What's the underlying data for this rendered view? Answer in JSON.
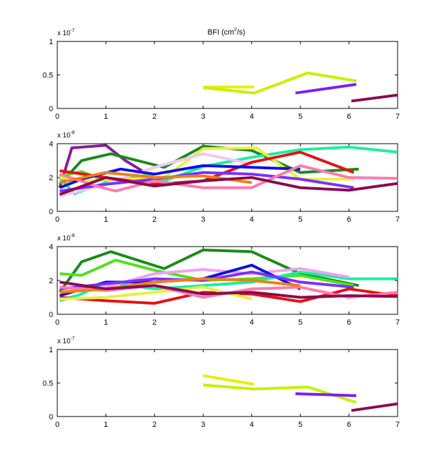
{
  "chart_data": [
    {
      "type": "line",
      "title": "BFI (cm",
      "title_sup": "2",
      "title_tail": "/s)",
      "exponent": {
        "base": "x 10",
        "power": "-7"
      },
      "xlim": [
        0,
        7
      ],
      "ylim": [
        0,
        1
      ],
      "xticks": [
        "0",
        "1",
        "2",
        "3",
        "4",
        "5",
        "6",
        "7"
      ],
      "yticks": [
        "0",
        "0.5",
        "1"
      ],
      "yvalues": [
        0,
        0.5,
        1
      ],
      "series": [
        {
          "color": "#e8f000",
          "x": [
            3.0,
            4.05
          ],
          "y": [
            0.32,
            0.32
          ]
        },
        {
          "color": "#c8f000",
          "x": [
            3.0,
            4.05,
            5.15,
            6.15
          ],
          "y": [
            0.31,
            0.23,
            0.53,
            0.41
          ]
        },
        {
          "color": "#7a1cff",
          "x": [
            4.9,
            6.15
          ],
          "y": [
            0.23,
            0.36
          ]
        },
        {
          "color": "#8b0a50",
          "x": [
            6.05,
            7.0
          ],
          "y": [
            0.11,
            0.2
          ]
        }
      ]
    },
    {
      "type": "line",
      "exponent": {
        "base": "x 10",
        "power": "-8"
      },
      "xlim": [
        0,
        7
      ],
      "ylim": [
        0,
        4
      ],
      "xticks": [
        "0",
        "1",
        "2",
        "3",
        "4",
        "5",
        "6",
        "7"
      ],
      "yticks": [
        "0",
        "2",
        "4"
      ],
      "yvalues": [
        0,
        2,
        4
      ],
      "series": [
        {
          "color": "#8b1a9a",
          "x": [
            0.05,
            0.3,
            1.0,
            1.4,
            2.2
          ],
          "y": [
            1.4,
            3.75,
            3.9,
            3.0,
            1.6
          ]
        },
        {
          "color": "#1a8a1a",
          "x": [
            0.05,
            0.5,
            1.1,
            2.2,
            3.0,
            4.0,
            5.0,
            6.2
          ],
          "y": [
            1.6,
            3.0,
            3.4,
            2.6,
            3.85,
            3.6,
            2.3,
            2.5
          ]
        },
        {
          "color": "#50e020",
          "x": [
            0.05,
            0.5,
            1.0,
            2.0
          ],
          "y": [
            2.1,
            2.35,
            1.8,
            2.2
          ]
        },
        {
          "color": "#18f0a0",
          "x": [
            0.05,
            0.35,
            1.0,
            2.2,
            3.0,
            4.0,
            5.0,
            6.0,
            7.0
          ],
          "y": [
            2.0,
            1.05,
            1.7,
            1.8,
            2.65,
            3.2,
            3.65,
            3.8,
            3.5
          ]
        },
        {
          "color": "#e8f040",
          "x": [
            0.05,
            0.5,
            2.2,
            3.0,
            4.1,
            5.0,
            6.1
          ],
          "y": [
            2.0,
            1.8,
            2.0,
            3.7,
            3.75,
            1.9,
            1.9
          ]
        },
        {
          "color": "#f0c8f0",
          "x": [
            0.05,
            1.0,
            2.0,
            3.0,
            4.0
          ],
          "y": [
            0.9,
            1.6,
            2.6,
            3.4,
            2.8
          ]
        },
        {
          "color": "#e81010",
          "x": [
            0.05,
            1.0,
            2.0,
            3.0,
            4.0,
            5.0,
            6.1
          ],
          "y": [
            2.4,
            2.0,
            1.6,
            1.8,
            2.9,
            3.5,
            2.3
          ]
        },
        {
          "color": "#1010e8",
          "x": [
            0.05,
            0.5,
            1.3,
            2.0,
            3.0,
            4.0,
            5.0
          ],
          "y": [
            1.4,
            1.9,
            2.5,
            2.2,
            2.7,
            2.6,
            2.5
          ]
        },
        {
          "color": "#7a30ff",
          "x": [
            0.05,
            1.0,
            2.0,
            3.0,
            4.0,
            5.0,
            6.1
          ],
          "y": [
            1.2,
            1.6,
            1.9,
            2.3,
            2.2,
            1.9,
            1.4
          ]
        },
        {
          "color": "#ff7ab0",
          "x": [
            0.05,
            0.8,
            1.2,
            2.0,
            3.0,
            4.0,
            5.0,
            6.0,
            7.0
          ],
          "y": [
            2.2,
            1.5,
            1.2,
            1.8,
            1.4,
            1.4,
            2.7,
            2.0,
            1.95
          ]
        },
        {
          "color": "#f08010",
          "x": [
            0.05,
            1.0,
            2.0,
            3.0,
            4.0
          ],
          "y": [
            1.7,
            2.3,
            2.0,
            2.1,
            1.7
          ]
        },
        {
          "color": "#8b0a50",
          "x": [
            0.05,
            1.0,
            2.0,
            3.0,
            4.0,
            5.0,
            6.0,
            7.0
          ],
          "y": [
            1.0,
            2.0,
            1.5,
            1.8,
            2.0,
            1.4,
            1.25,
            1.65
          ]
        }
      ]
    },
    {
      "type": "line",
      "exponent": {
        "base": "x 10",
        "power": "-8"
      },
      "xlim": [
        0,
        7
      ],
      "ylim": [
        0,
        4
      ],
      "xticks": [
        "0",
        "1",
        "2",
        "3",
        "4",
        "5",
        "6",
        "7"
      ],
      "yticks": [
        "0",
        "2",
        "4"
      ],
      "yvalues": [
        0,
        2,
        4
      ],
      "series": [
        {
          "color": "#1a8a1a",
          "x": [
            0.05,
            0.5,
            1.1,
            2.2,
            3.0,
            4.0,
            5.0,
            6.2
          ],
          "y": [
            1.3,
            3.1,
            3.7,
            2.7,
            3.8,
            3.7,
            2.4,
            1.7
          ]
        },
        {
          "color": "#50e020",
          "x": [
            0.05,
            0.5,
            1.2,
            2.0,
            3.0,
            4.0,
            5.0,
            6.1
          ],
          "y": [
            2.4,
            2.3,
            3.2,
            2.6,
            2.0,
            2.1,
            2.3,
            1.7
          ]
        },
        {
          "color": "#18f0a0",
          "x": [
            0.05,
            0.5,
            1.0,
            2.0,
            3.0,
            4.0,
            5.0,
            6.0,
            7.0
          ],
          "y": [
            0.8,
            1.2,
            1.9,
            1.5,
            1.7,
            1.9,
            2.5,
            2.1,
            2.1
          ]
        },
        {
          "color": "#f0a0f0",
          "x": [
            0.05,
            1.0,
            2.0,
            3.0,
            4.0,
            5.0,
            6.0
          ],
          "y": [
            1.3,
            1.6,
            2.4,
            2.65,
            2.4,
            2.7,
            2.2
          ]
        },
        {
          "color": "#1010e8",
          "x": [
            0.05,
            1.0,
            2.0,
            3.0,
            4.0,
            5.0
          ],
          "y": [
            1.1,
            1.9,
            1.9,
            2.1,
            2.9,
            1.5
          ]
        },
        {
          "color": "#7a30ff",
          "x": [
            0.05,
            1.0,
            2.0,
            3.0,
            4.0,
            5.0,
            6.1
          ],
          "y": [
            1.5,
            1.8,
            2.1,
            2.0,
            2.5,
            1.9,
            1.6
          ]
        },
        {
          "color": "#e81010",
          "x": [
            0.05,
            1.0,
            2.0,
            3.0,
            4.0,
            5.0,
            6.0,
            7.0
          ],
          "y": [
            1.0,
            0.8,
            0.65,
            1.3,
            1.2,
            0.75,
            1.5,
            1.1
          ]
        },
        {
          "color": "#e8f040",
          "x": [
            0.05,
            1.0,
            2.0,
            3.0,
            4.0
          ],
          "y": [
            0.9,
            1.0,
            1.3,
            1.6,
            0.9
          ]
        },
        {
          "color": "#ff7ab0",
          "x": [
            0.05,
            1.0,
            2.0,
            3.0,
            4.0,
            5.0,
            6.0,
            7.0
          ],
          "y": [
            1.6,
            1.4,
            1.7,
            1.0,
            1.5,
            1.6,
            1.0,
            1.3
          ]
        },
        {
          "color": "#f08010",
          "x": [
            0.05,
            1.0,
            2.0,
            3.0,
            4.0,
            5.0
          ],
          "y": [
            1.3,
            1.5,
            1.9,
            2.1,
            2.0,
            1.7
          ]
        },
        {
          "color": "#8b0a50",
          "x": [
            0.05,
            1.0,
            2.0,
            3.0,
            4.0,
            5.0,
            6.0,
            7.0
          ],
          "y": [
            1.9,
            1.5,
            1.7,
            1.2,
            1.3,
            1.0,
            1.1,
            1.05
          ]
        }
      ]
    },
    {
      "type": "line",
      "exponent": {
        "base": "x 10",
        "power": "-7"
      },
      "xlim": [
        0,
        7
      ],
      "ylim": [
        0,
        1
      ],
      "xticks": [
        "0",
        "1",
        "2",
        "3",
        "4",
        "5",
        "6",
        "7"
      ],
      "yticks": [
        "0",
        "0.5",
        "1"
      ],
      "yvalues": [
        0,
        0.5,
        1
      ],
      "series": [
        {
          "color": "#e8f000",
          "x": [
            3.0,
            4.05
          ],
          "y": [
            0.61,
            0.48
          ]
        },
        {
          "color": "#c8f000",
          "x": [
            3.0,
            4.05,
            5.15,
            6.15
          ],
          "y": [
            0.47,
            0.41,
            0.44,
            0.21
          ]
        },
        {
          "color": "#7a1cff",
          "x": [
            4.9,
            6.15
          ],
          "y": [
            0.34,
            0.31
          ]
        },
        {
          "color": "#8b0a50",
          "x": [
            6.05,
            7.0
          ],
          "y": [
            0.09,
            0.19
          ]
        }
      ]
    }
  ]
}
